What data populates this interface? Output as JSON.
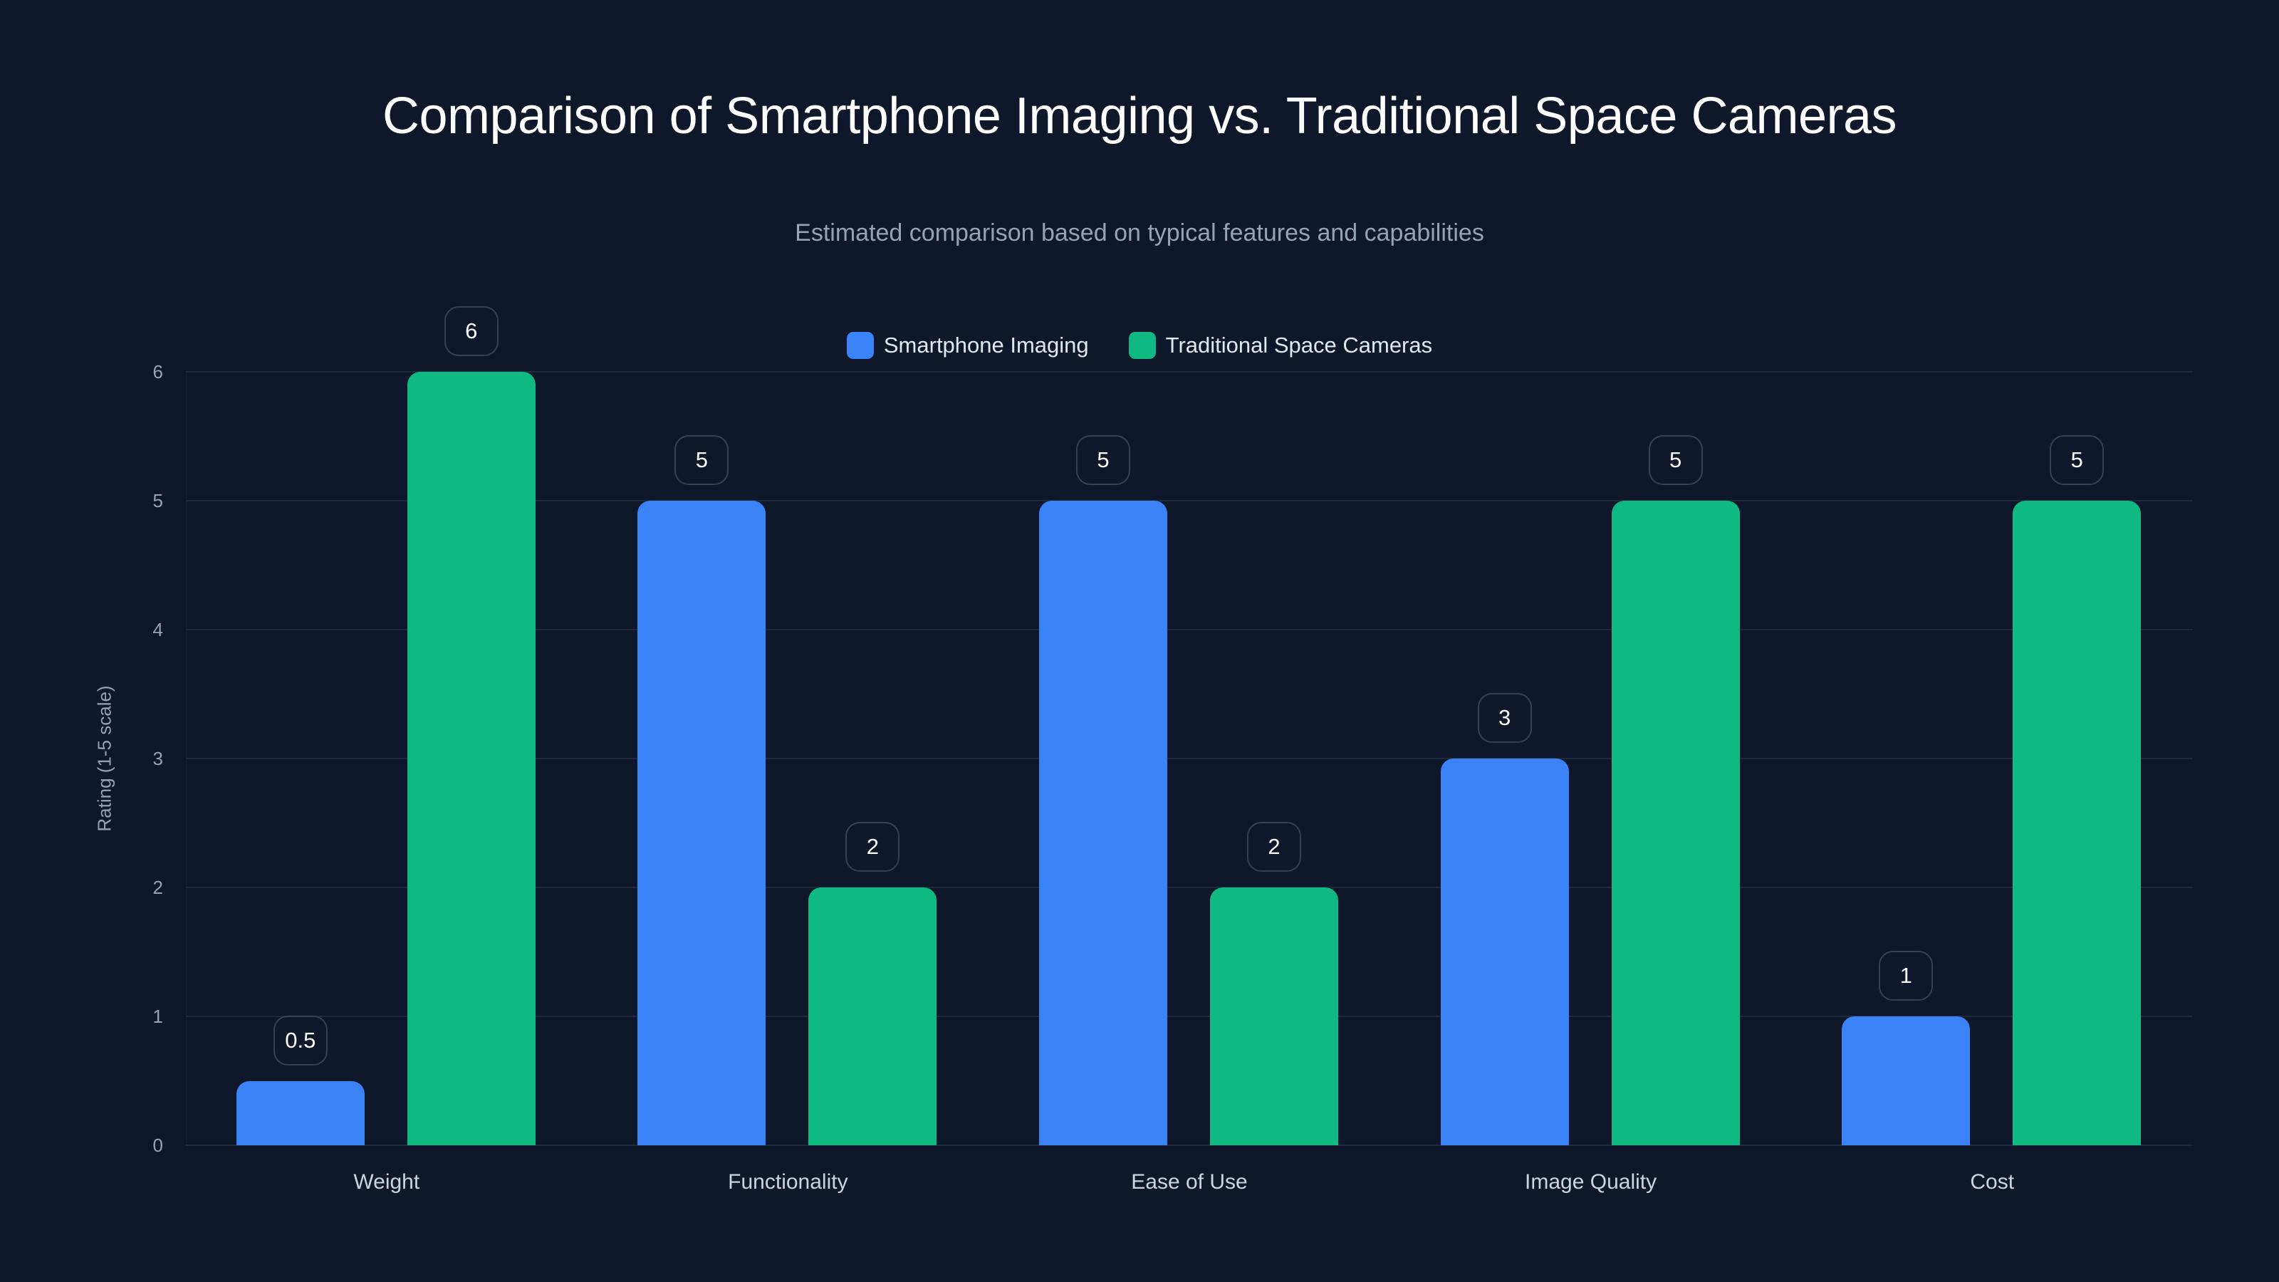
{
  "title": "Comparison of Smartphone Imaging vs. Traditional Space Cameras",
  "subtitle": "Estimated comparison based on typical features and capabilities",
  "legend": [
    {
      "label": "Smartphone Imaging",
      "color": "#3b82f6"
    },
    {
      "label": "Traditional Space Cameras",
      "color": "#10b981"
    }
  ],
  "y_axis": {
    "title": "Rating (1-5 scale)",
    "ticks": [
      "0",
      "1",
      "2",
      "3",
      "4",
      "5",
      "6"
    ]
  },
  "chart_data": {
    "type": "bar",
    "title": "Comparison of Smartphone Imaging vs. Traditional Space Cameras",
    "subtitle": "Estimated comparison based on typical features and capabilities",
    "xlabel": "",
    "ylabel": "Rating (1-5 scale)",
    "ylim": [
      0,
      6
    ],
    "grid": true,
    "legend_position": "top",
    "categories": [
      "Weight",
      "Functionality",
      "Ease of Use",
      "Image Quality",
      "Cost"
    ],
    "series": [
      {
        "name": "Smartphone Imaging",
        "color": "#3b82f6",
        "values": [
          0.5,
          5,
          5,
          3,
          1
        ]
      },
      {
        "name": "Traditional Space Cameras",
        "color": "#10b981",
        "values": [
          6,
          2,
          2,
          5,
          5
        ]
      }
    ],
    "data_labels": [
      [
        "0.5",
        "5",
        "5",
        "3",
        "1"
      ],
      [
        "6",
        "2",
        "2",
        "5",
        "5"
      ]
    ]
  }
}
